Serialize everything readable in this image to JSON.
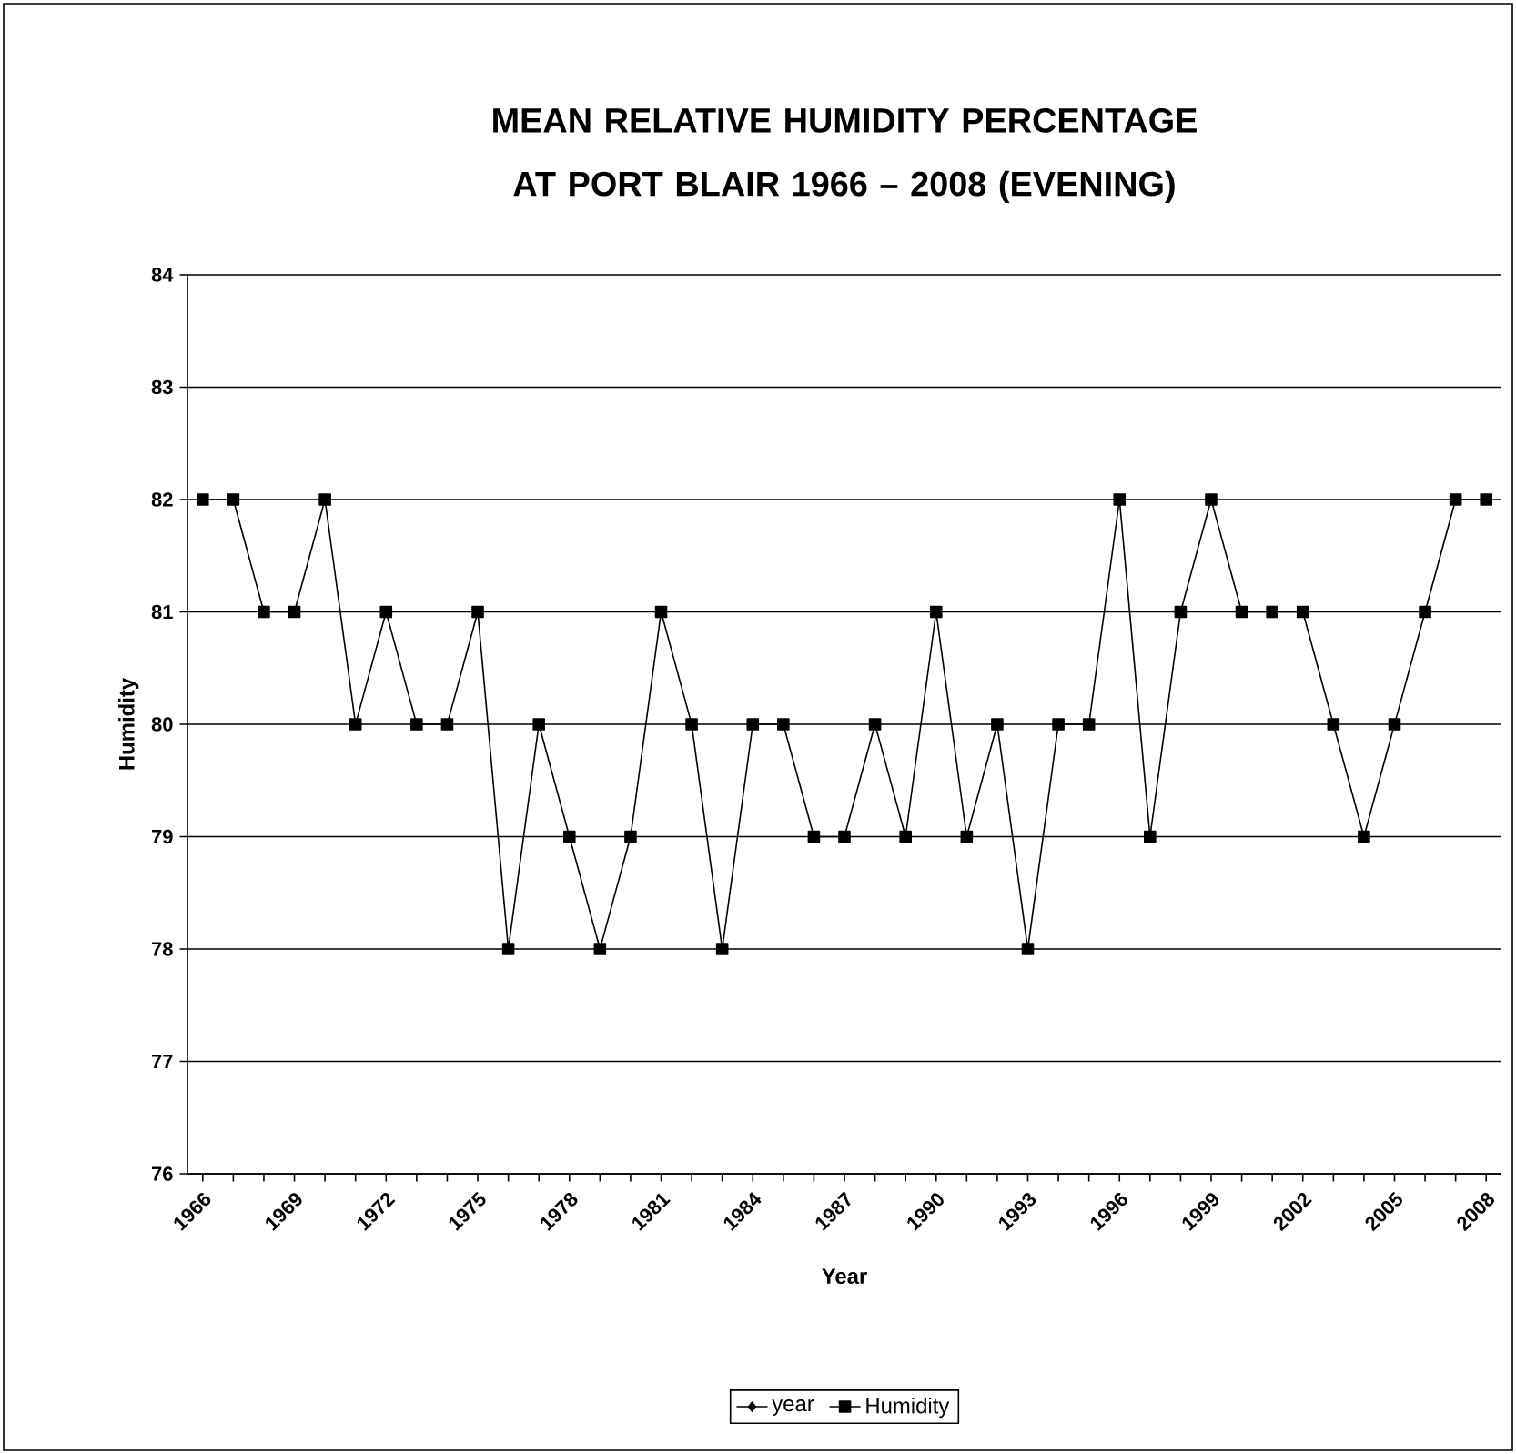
{
  "chart_data": {
    "type": "line",
    "title": "MEAN RELATIVE HUMIDITY PERCENTAGE AT PORT BLAIR 1966 – 2008 (EVENING)",
    "xlabel": "Year",
    "ylabel": "Humidity",
    "categories": [
      "1966",
      null,
      null,
      "1969",
      null,
      null,
      "1972",
      null,
      null,
      "1975",
      null,
      null,
      "1978",
      null,
      null,
      "1981",
      null,
      null,
      "1984",
      null,
      null,
      "1987",
      null,
      null,
      "1990",
      null,
      null,
      "1993",
      null,
      null,
      "1996",
      null,
      null,
      "1999",
      null,
      null,
      "2002",
      null,
      null,
      "2005",
      null,
      null,
      "2008"
    ],
    "series": [
      {
        "name": "year",
        "color": "#000000",
        "marker": "diamond",
        "values": [
          null,
          null,
          null,
          null,
          null,
          null,
          null,
          null,
          null,
          null,
          null,
          null,
          null,
          null,
          null,
          null,
          null,
          null,
          null,
          null,
          null,
          null,
          null,
          null,
          null,
          null,
          null,
          null,
          null,
          null,
          null,
          null,
          null,
          null,
          null,
          null,
          null,
          null,
          null,
          null,
          null,
          null,
          null
        ]
      },
      {
        "name": "Humidity",
        "color": "#000000",
        "marker": "square",
        "values": [
          82,
          82,
          81,
          81,
          82,
          80,
          81,
          80,
          80,
          81,
          78,
          80,
          79,
          78,
          79,
          81,
          80,
          78,
          80,
          80,
          79,
          79,
          80,
          79,
          81,
          79,
          80,
          78,
          80,
          80,
          82,
          79,
          81,
          82,
          81,
          81,
          81,
          80,
          79,
          80,
          81,
          82,
          82
        ]
      }
    ],
    "ylim": [
      76,
      84
    ],
    "yticks": [
      76,
      77,
      78,
      79,
      80,
      81,
      82,
      83,
      84
    ],
    "grid": "y",
    "legend": "bottom",
    "line_style": "solid"
  }
}
